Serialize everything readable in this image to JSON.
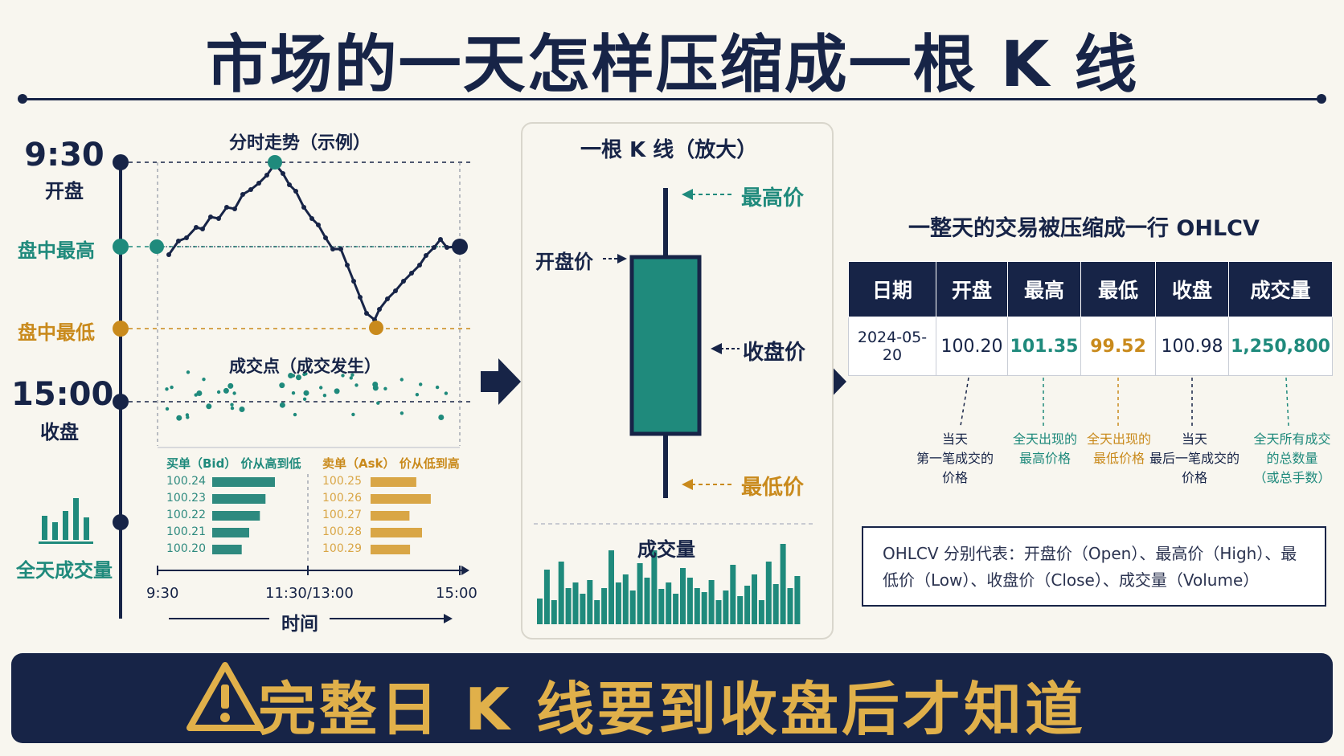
{
  "title": "市场的一天怎样压缩成一根 K 线",
  "colors": {
    "navy": "#172447",
    "teal": "#1f8a7c",
    "gold": "#c98a1c",
    "bg": "#f8f6ef"
  },
  "timeline": {
    "open_time": "9:30",
    "open_label": "开盘",
    "high_label": "盘中最高",
    "low_label": "盘中最低",
    "close_time": "15:00",
    "close_label": "收盘",
    "volume_label": "全天成交量"
  },
  "intraday": {
    "title": "分时走势（示例）",
    "trades_title": "成交点（成交发生）",
    "bid_header": "买单（Bid） 价从高到低",
    "ask_header": "卖单（Ask） 价从低到高",
    "bids": [
      {
        "price": "100.24",
        "size": 1.0
      },
      {
        "price": "100.23",
        "size": 0.85
      },
      {
        "price": "100.22",
        "size": 0.76
      },
      {
        "price": "100.21",
        "size": 0.59
      },
      {
        "price": "100.20",
        "size": 0.47
      }
    ],
    "asks": [
      {
        "price": "100.25",
        "size": 0.73
      },
      {
        "price": "100.26",
        "size": 0.96
      },
      {
        "price": "100.27",
        "size": 0.62
      },
      {
        "price": "100.28",
        "size": 0.82
      },
      {
        "price": "100.29",
        "size": 0.63
      }
    ],
    "axis_ticks": [
      "9:30",
      "11:30/13:00",
      "15:00"
    ],
    "axis_label": "时间"
  },
  "kline": {
    "title": "一根 K 线（放大）",
    "high_label": "最高价",
    "open_label": "开盘价",
    "close_label": "收盘价",
    "low_label": "最低价",
    "volume_title": "成交量",
    "volume_bars": [
      0.32,
      0.68,
      0.3,
      0.78,
      0.45,
      0.52,
      0.38,
      0.55,
      0.3,
      0.45,
      0.92,
      0.52,
      0.62,
      0.42,
      0.76,
      0.58,
      0.92,
      0.44,
      0.52,
      0.38,
      0.7,
      0.58,
      0.45,
      0.4,
      0.55,
      0.3,
      0.42,
      0.74,
      0.35,
      0.48,
      0.62,
      0.3,
      0.78,
      0.5,
      1.0,
      0.45,
      0.6
    ]
  },
  "ohlcv": {
    "title": "一整天的交易被压缩成一行 OHLCV",
    "headers": [
      "日期",
      "开盘",
      "最高",
      "最低",
      "收盘",
      "成交量"
    ],
    "row": [
      "2024-05-20",
      "100.20",
      "101.35",
      "99.52",
      "100.98",
      "1,250,800"
    ],
    "notes": [
      "当天\n第一笔成交的\n价格",
      "全天出现的\n最高价格",
      "全天出现的\n最低价格",
      "当天\n最后一笔成交的\n价格",
      "全天所有成交\n的总数量\n（或总手数）"
    ],
    "definition": "OHLCV 分别代表：开盘价（Open）、最高价（High）、最低价（Low）、收盘价（Close）、成交量（Volume）"
  },
  "footer": "完整日 K 线要到收盘后才知道"
}
